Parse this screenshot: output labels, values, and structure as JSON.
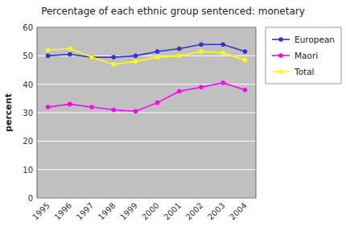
{
  "chart_data": {
    "type": "line",
    "title": "Percentage of each ethnic group sentenced: monetary",
    "y_label": "percent",
    "categories": [
      "1995",
      "1996",
      "1997",
      "1998",
      "1999",
      "2000",
      "2001",
      "2002",
      "2003",
      "2004"
    ],
    "series": [
      {
        "name": "European",
        "color": "#3333CC",
        "marker": "circle",
        "values": [
          50.0,
          50.5,
          49.5,
          49.5,
          50.0,
          51.5,
          52.5,
          54.0,
          54.0,
          51.5
        ]
      },
      {
        "name": "Maori",
        "color": "#FF00FF",
        "marker": "circle",
        "values": [
          32.0,
          33.0,
          32.0,
          31.0,
          30.5,
          33.5,
          37.5,
          39.0,
          40.5,
          38.0
        ]
      },
      {
        "name": "Total",
        "color": "#FFFF00",
        "marker": "circle",
        "values": [
          52.0,
          52.5,
          49.5,
          47.0,
          48.0,
          49.5,
          50.0,
          51.5,
          51.0,
          48.5
        ]
      }
    ],
    "ylim": [
      0,
      60
    ],
    "yticks": [
      0,
      10,
      20,
      30,
      40,
      50,
      60
    ],
    "grid": true,
    "legend": "right"
  }
}
